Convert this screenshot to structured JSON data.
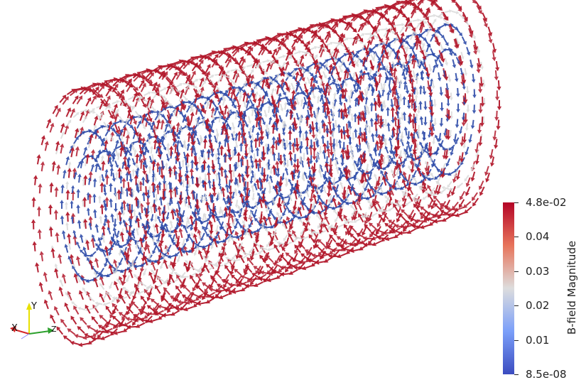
{
  "colorbar": {
    "title": "B-field Magnitude",
    "tick_labels": [
      "4.8e-02",
      "0.04",
      "0.03",
      "0.02",
      "0.01",
      "8.5e-08"
    ],
    "range": [
      8.5e-08,
      0.048
    ],
    "colormap": [
      "#3b4cc0",
      "#7b9ff9",
      "#dddddd",
      "#e7745b",
      "#b40426"
    ]
  },
  "axes": {
    "x": {
      "label": "X",
      "color": "#d62728"
    },
    "y": {
      "label": "Y",
      "color": "#e8e000"
    },
    "z": {
      "label": "Z",
      "color": "#2ca02c"
    }
  },
  "scene": {
    "object": "solenoid-field-glyphs",
    "outer_color": "#b2182b",
    "mid_color": "#d8d8d8",
    "inner_color": "#2c4aa8",
    "background": "#ffffff"
  }
}
